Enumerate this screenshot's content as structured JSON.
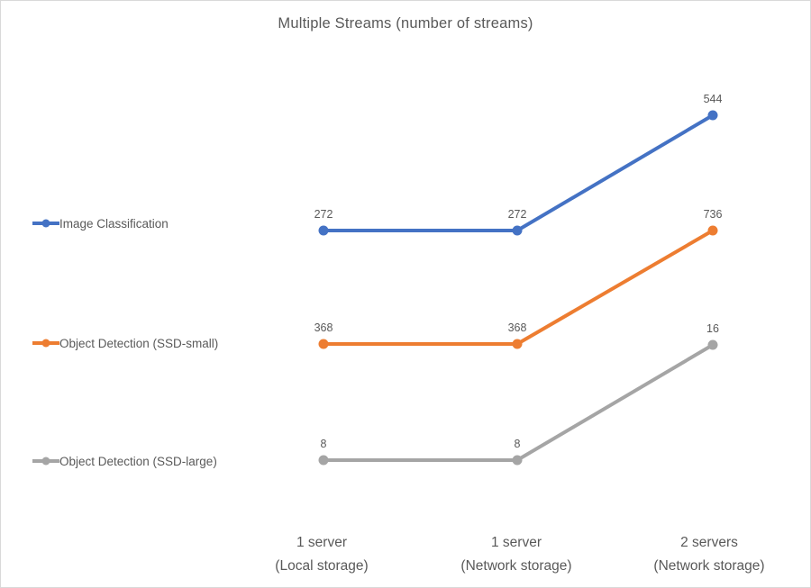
{
  "window": {
    "background": "#FFFFFF",
    "border_color": "#D9D9D9"
  },
  "chart_data": {
    "type": "line",
    "title": "Multiple Streams (number of streams)",
    "categories": [
      "1 server (Local storage)",
      "1 server (Network storage)",
      "2 servers (Network storage)"
    ],
    "categories_lines": [
      {
        "line1": "1 server",
        "line2": "(Local storage)"
      },
      {
        "line1": "1 server",
        "line2": "(Network storage)"
      },
      {
        "line1": "2 servers",
        "line2": "(Network storage)"
      }
    ],
    "series": [
      {
        "name": "Image Classification",
        "color": "#4472C4",
        "values": [
          272,
          272,
          544
        ]
      },
      {
        "name": "Object Detection (SSD-small)",
        "color": "#ED7D31",
        "values": [
          368,
          368,
          736
        ]
      },
      {
        "name": "Object Detection (SSD-large)",
        "color": "#A5A5A5",
        "values": [
          8,
          8,
          16
        ]
      }
    ],
    "data_labels": true,
    "legend_position": "left",
    "grid": false,
    "axes_visible": false,
    "text_color": "#595959"
  }
}
